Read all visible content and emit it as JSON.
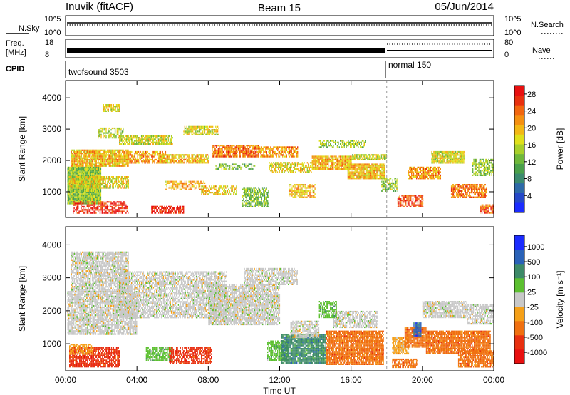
{
  "header": {
    "site": "Inuvik (fitACF)",
    "beam": "Beam 15",
    "date": "05/Jun/2014"
  },
  "top_panels": {
    "nsky_label": "N.Sky",
    "nsky_ticks": [
      "10^5",
      "10^0"
    ],
    "nsearch_label": "N.Search",
    "nsearch_ticks": [
      "10^5",
      "10^0"
    ],
    "freq_label": "Freq.",
    "freq_unit": "[MHz]",
    "freq_ticks": [
      "18",
      "8"
    ],
    "nave_label": "Nave",
    "nave_ticks": [
      "80",
      "0"
    ],
    "cpid_label": "CPID",
    "cpid_segments": [
      {
        "name": "twofsound 3503",
        "start_hour": 0,
        "end_hour": 18.0
      },
      {
        "name": "normal 150",
        "start_hour": 18.0,
        "end_hour": 24
      }
    ]
  },
  "chart_data": [
    {
      "type": "heatmap",
      "name": "power",
      "ylabel": "Slant Range [km]",
      "xlabel": "Time UT",
      "x_ticks": [
        "00:00",
        "04:00",
        "08:00",
        "12:00",
        "16:00",
        "20:00",
        "00:00"
      ],
      "xlim_hours": [
        0,
        24
      ],
      "y_ticks": [
        "1000",
        "2000",
        "3000",
        "4000"
      ],
      "ylim": [
        180,
        4550
      ],
      "colorbar": {
        "label": "Power [dB]",
        "ticks": [
          "4",
          "8",
          "12",
          "16",
          "20",
          "24",
          "28"
        ],
        "range": [
          0,
          30
        ],
        "colors": [
          "#1b2cff",
          "#2548c8",
          "#2e6aa8",
          "#3b8a6e",
          "#4aa04a",
          "#6fb83a",
          "#a8d02a",
          "#e0e01a",
          "#f3b814",
          "#f59010",
          "#f2660e",
          "#e8300e",
          "#e81010"
        ]
      },
      "cells": [
        [
          0.1,
          2.0,
          1.0,
          600,
          1800,
          14
        ],
        [
          0.4,
          3.5,
          0.6,
          300,
          700,
          29
        ],
        [
          0.2,
          3.5,
          0.7,
          1100,
          1500,
          18
        ],
        [
          0.3,
          3.5,
          0.9,
          1800,
          2350,
          20
        ],
        [
          1.8,
          3.2,
          0.6,
          2700,
          3050,
          16
        ],
        [
          2.1,
          3.0,
          0.7,
          3550,
          3800,
          18
        ],
        [
          3.4,
          5.6,
          0.7,
          1900,
          2300,
          22
        ],
        [
          3.0,
          6.0,
          0.8,
          2500,
          2800,
          17
        ],
        [
          4.8,
          6.6,
          0.7,
          300,
          550,
          29
        ],
        [
          5.6,
          7.8,
          0.6,
          1050,
          1350,
          21
        ],
        [
          5.2,
          8.0,
          0.8,
          1900,
          2200,
          20
        ],
        [
          6.6,
          8.6,
          0.7,
          2800,
          3100,
          17
        ],
        [
          7.6,
          9.6,
          0.6,
          900,
          1200,
          19
        ],
        [
          8.2,
          10.8,
          0.8,
          2100,
          2500,
          24
        ],
        [
          8.4,
          10.6,
          0.5,
          1700,
          1900,
          12
        ],
        [
          9.9,
          11.4,
          0.7,
          500,
          1150,
          13
        ],
        [
          10.8,
          13.0,
          0.7,
          2100,
          2450,
          22
        ],
        [
          11.4,
          13.8,
          0.6,
          1600,
          1950,
          18
        ],
        [
          12.5,
          14.0,
          0.6,
          800,
          1250,
          20
        ],
        [
          13.8,
          16.0,
          0.8,
          1700,
          2150,
          21
        ],
        [
          14.2,
          16.8,
          0.6,
          2400,
          2650,
          14
        ],
        [
          15.8,
          17.9,
          0.9,
          1400,
          1900,
          20
        ],
        [
          16.0,
          18.0,
          0.8,
          2000,
          2200,
          16
        ],
        [
          17.7,
          18.6,
          0.6,
          1000,
          1450,
          14
        ],
        [
          18.6,
          20.0,
          0.6,
          500,
          900,
          26
        ],
        [
          19.2,
          21.0,
          0.8,
          1400,
          1800,
          22
        ],
        [
          20.5,
          22.4,
          0.9,
          1900,
          2300,
          17
        ],
        [
          21.6,
          23.6,
          0.8,
          800,
          1250,
          24
        ],
        [
          22.8,
          24.0,
          0.7,
          1500,
          2050,
          14
        ],
        [
          23.2,
          24.0,
          0.7,
          300,
          600,
          25
        ]
      ]
    },
    {
      "type": "heatmap",
      "name": "velocity",
      "ylabel": "Slant Range [km]",
      "xlabel": "Time UT",
      "x_ticks": [
        "00:00",
        "04:00",
        "08:00",
        "12:00",
        "16:00",
        "20:00",
        "00:00"
      ],
      "xlim_hours": [
        0,
        24
      ],
      "y_ticks": [
        "1000",
        "2000",
        "3000",
        "4000"
      ],
      "ylim": [
        180,
        4550
      ],
      "colorbar": {
        "label": "Velocity [m s⁻¹]",
        "ticks": [
          "1000",
          "500",
          "100",
          "25",
          "-25",
          "-100",
          "-500",
          "-1000"
        ],
        "colors": [
          "#1b2cff",
          "#2a62b8",
          "#3d8a68",
          "#5cc030",
          "#c8c8c8",
          "#f5a018",
          "#f07010",
          "#e83010",
          "#e81010"
        ]
      },
      "cells": [
        [
          0.1,
          4.0,
          0.8,
          1300,
          2600,
          4
        ],
        [
          0.3,
          3.5,
          0.8,
          2600,
          3800,
          4
        ],
        [
          0.2,
          3.0,
          0.8,
          300,
          900,
          7
        ],
        [
          0.2,
          1.5,
          0.6,
          700,
          1000,
          5
        ],
        [
          3.0,
          9.0,
          0.7,
          1800,
          3200,
          4
        ],
        [
          4.5,
          6.0,
          0.8,
          500,
          900,
          3
        ],
        [
          5.8,
          8.2,
          0.7,
          400,
          900,
          7
        ],
        [
          8.0,
          12.0,
          0.8,
          1600,
          2800,
          4
        ],
        [
          10.0,
          13.0,
          0.7,
          2800,
          3300,
          4
        ],
        [
          11.3,
          12.5,
          0.8,
          500,
          1100,
          3
        ],
        [
          12.1,
          14.6,
          0.9,
          400,
          1300,
          2
        ],
        [
          12.6,
          14.2,
          0.7,
          1200,
          1700,
          4
        ],
        [
          14.6,
          17.8,
          0.9,
          400,
          1400,
          6
        ],
        [
          15.0,
          17.5,
          0.7,
          1500,
          2000,
          4
        ],
        [
          14.2,
          15.2,
          0.7,
          1800,
          2300,
          3
        ],
        [
          18.3,
          19.2,
          0.8,
          700,
          1200,
          5
        ],
        [
          19.0,
          20.2,
          0.9,
          900,
          1500,
          6
        ],
        [
          19.5,
          19.9,
          0.9,
          1250,
          1650,
          1
        ],
        [
          20.2,
          23.8,
          0.9,
          700,
          1400,
          6
        ],
        [
          20.0,
          22.5,
          0.8,
          1800,
          2300,
          4
        ],
        [
          22.5,
          24.0,
          0.7,
          1600,
          2200,
          4
        ],
        [
          22.0,
          24.0,
          0.8,
          300,
          800,
          6
        ],
        [
          18.3,
          19.7,
          0.7,
          300,
          550,
          6
        ]
      ]
    }
  ]
}
